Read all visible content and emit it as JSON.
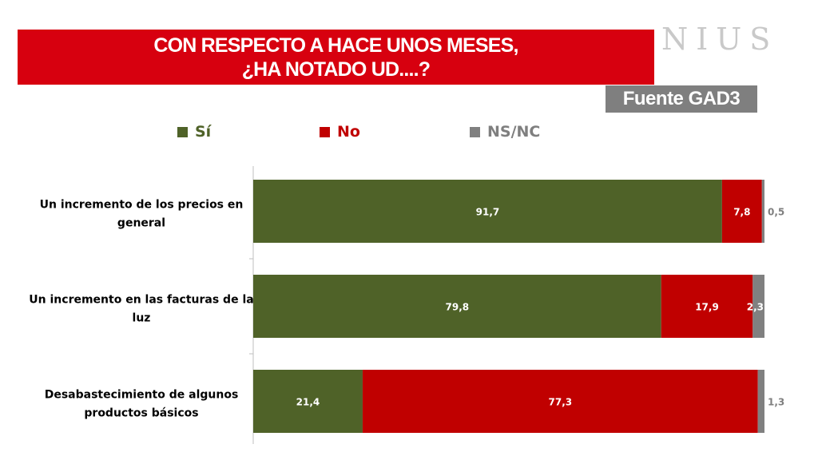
{
  "header": {
    "title_line1": "CON RESPECTO A HACE UNOS MESES,",
    "title_line2": "¿HA NOTADO UD....?",
    "brand": "NIUS",
    "source": "Fuente GAD3"
  },
  "colors": {
    "si": "#4f6228",
    "no": "#c00000",
    "nsnc": "#808080",
    "title_bg": "#d7000f"
  },
  "chart_data": {
    "type": "bar",
    "orientation": "horizontal",
    "stacked": true,
    "categories": [
      [
        "Un incremento de los precios en",
        "general"
      ],
      [
        "Un incremento en las facturas de la",
        "luz"
      ],
      [
        "Desabastecimiento de algunos",
        "productos básicos"
      ]
    ],
    "series": [
      {
        "name": "Sí",
        "values": [
          91.7,
          79.8,
          21.4
        ],
        "labels": [
          "91,7",
          "79,8",
          "21,4"
        ]
      },
      {
        "name": "No",
        "values": [
          7.8,
          17.9,
          77.3
        ],
        "labels": [
          "7,8",
          "17,9",
          "77,3"
        ]
      },
      {
        "name": "NS/NC",
        "values": [
          0.5,
          2.3,
          1.3
        ],
        "labels": [
          "0,5",
          "2,3",
          "1,3"
        ]
      }
    ],
    "xlim": [
      0,
      100
    ],
    "legend_position": "top",
    "grid": false
  }
}
